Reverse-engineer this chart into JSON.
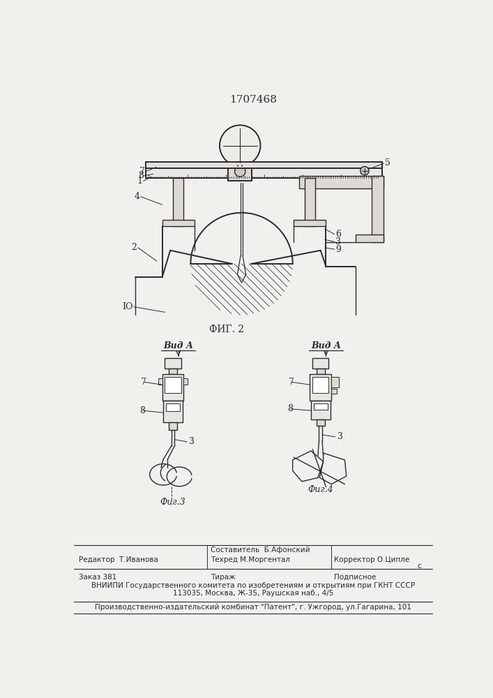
{
  "title": "1707468",
  "fig2_label": "ФИГ. 2",
  "fig3_label": "Фиг.3",
  "fig4_label": "Фиг.4",
  "view_a_label": "Вид А",
  "bg_color": "#f2f0ed",
  "line_color": "#2a2a2a",
  "footer_line1_left": "Редактор  Т.Иванова",
  "footer_line1_center_top": "Составитель  Б.Афонский",
  "footer_line1_center_bot": "Техред М.Моргентал",
  "footer_line1_right": "Корректор О.Ципле",
  "footer_line2_left": "Заказ 381",
  "footer_line2_center": "Тираж",
  "footer_line2_right": "Подписное",
  "footer_line3": "ВНИИПИ Государственного комитета по изобретениям и открытиям при ГКНТ СССР",
  "footer_line4": "113035, Москва, Ж-35, Раушская наб., 4/5",
  "footer_line5": "Производственно-издательский комбинат \"Патент\", г. Ужгород, ул.Гагарина, 101"
}
